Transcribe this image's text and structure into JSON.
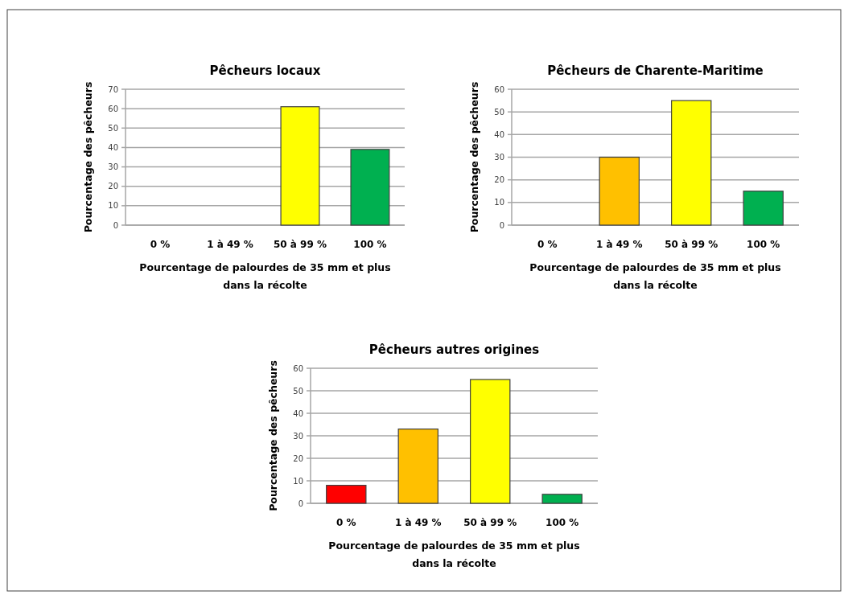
{
  "chart_data": [
    {
      "type": "bar",
      "title": "Pêcheurs locaux",
      "xlabel": "Pourcentage de palourdes de 35 mm et plus dans la récolte",
      "ylabel": "Pourcentage des pêcheurs",
      "categories": [
        "0 %",
        "1 à 49 %",
        "50 à 99 %",
        "100 %"
      ],
      "values": [
        0,
        0,
        61,
        39
      ],
      "colors": [
        "#ff0000",
        "#ffc000",
        "#ffff00",
        "#00b050"
      ],
      "ylim": [
        0,
        70
      ],
      "yticks": [
        0,
        10,
        20,
        30,
        40,
        50,
        60,
        70
      ],
      "grid": "y"
    },
    {
      "type": "bar",
      "title": "Pêcheurs de Charente-Maritime",
      "xlabel": "Pourcentage de palourdes de 35 mm et plus dans la récolte",
      "ylabel": "Pourcentage des pêcheurs",
      "categories": [
        "0 %",
        "1 à 49 %",
        "50 à 99 %",
        "100 %"
      ],
      "values": [
        0,
        30,
        55,
        15
      ],
      "colors": [
        "#ff0000",
        "#ffc000",
        "#ffff00",
        "#00b050"
      ],
      "ylim": [
        0,
        60
      ],
      "yticks": [
        0,
        10,
        20,
        30,
        40,
        50,
        60
      ],
      "grid": "y"
    },
    {
      "type": "bar",
      "title": "Pêcheurs autres origines",
      "xlabel": "Pourcentage de palourdes de 35 mm et plus dans la récolte",
      "ylabel": "Pourcentage des pêcheurs",
      "categories": [
        "0 %",
        "1 à 49 %",
        "50 à 99 %",
        "100 %"
      ],
      "values": [
        8,
        33,
        55,
        4
      ],
      "colors": [
        "#ff0000",
        "#ffc000",
        "#ffff00",
        "#00b050"
      ],
      "ylim": [
        0,
        60
      ],
      "yticks": [
        0,
        10,
        20,
        30,
        40,
        50,
        60
      ],
      "grid": "y"
    }
  ]
}
